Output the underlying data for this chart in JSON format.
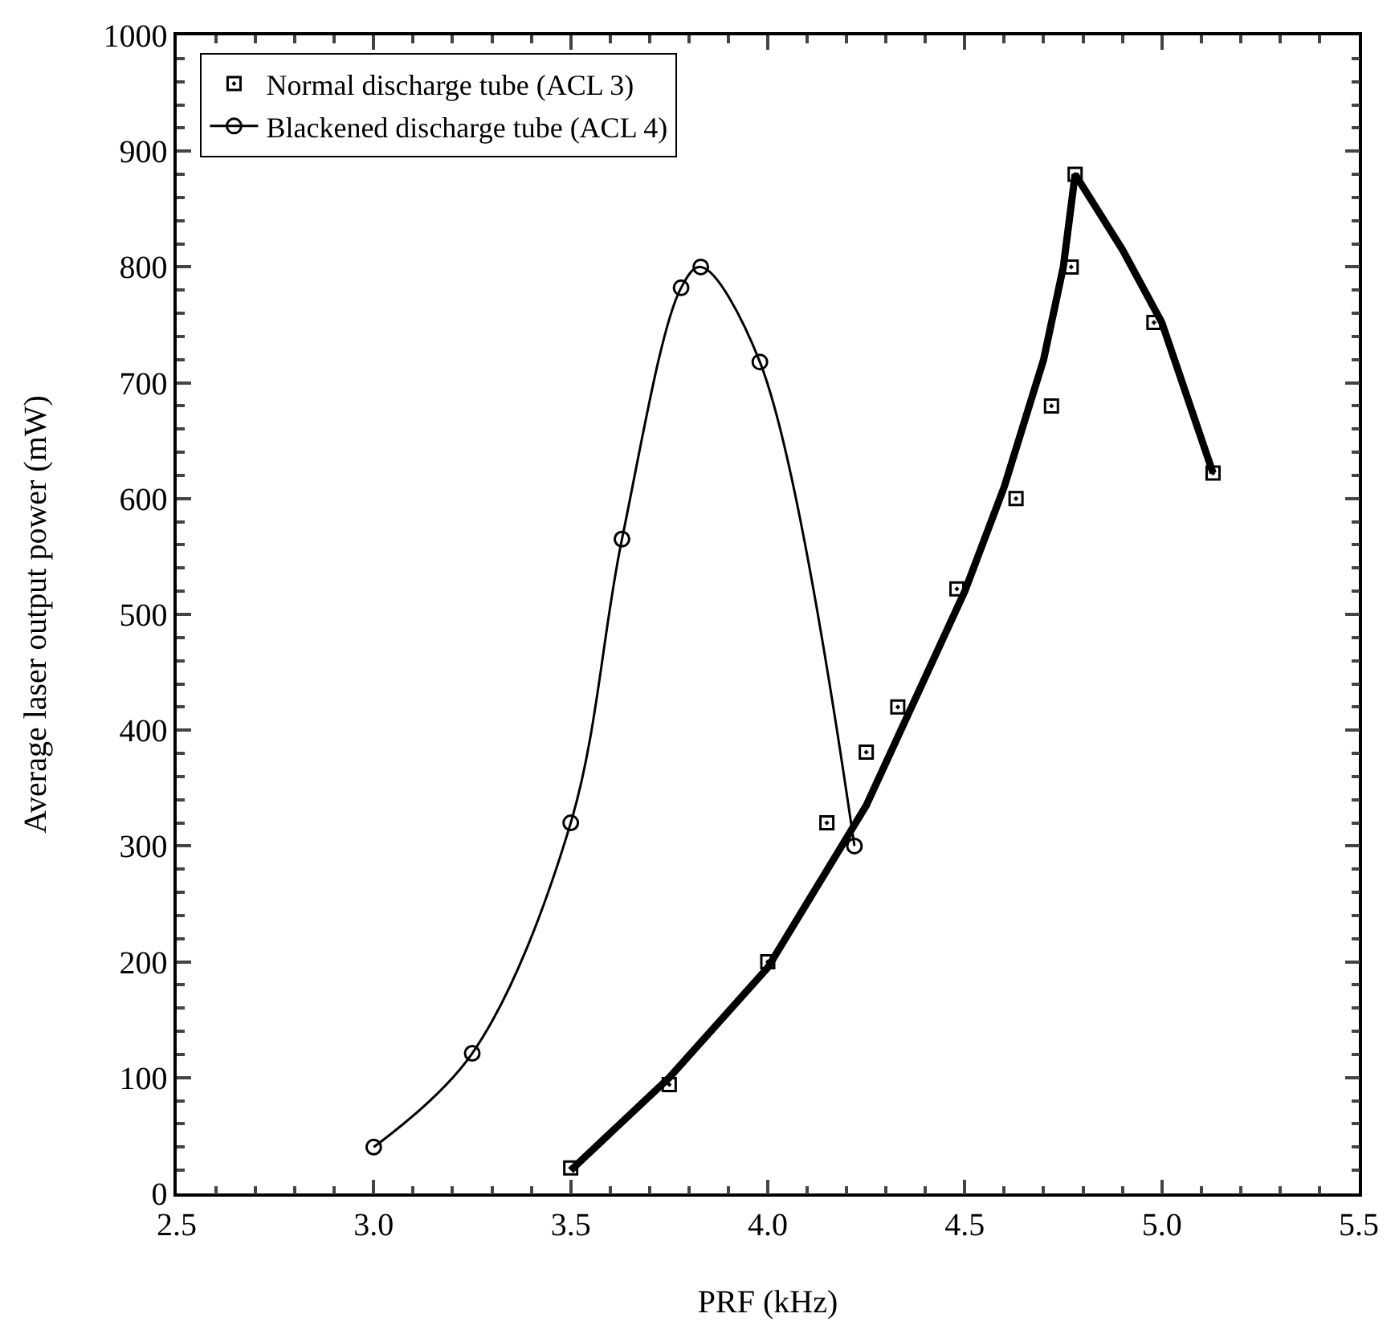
{
  "chart_data": {
    "type": "scatter",
    "xlabel": "PRF (kHz)",
    "ylabel": "Average laser output power (mW)",
    "xlim": [
      2.5,
      5.5
    ],
    "xticks": [
      {
        "value": 2.5,
        "label": "2.5"
      },
      {
        "value": 3,
        "label": "3.0"
      },
      {
        "value": 3.5,
        "label": "3.5"
      },
      {
        "value": 4,
        "label": "4.0"
      },
      {
        "value": 4.5,
        "label": "4.5"
      },
      {
        "value": 5,
        "label": "5.0"
      },
      {
        "value": 5.5,
        "label": "5.5"
      }
    ],
    "ylim": [
      0,
      1000
    ],
    "yticks": [
      0,
      100,
      200,
      300,
      400,
      500,
      600,
      700,
      800,
      900,
      1000
    ],
    "legend": "top left",
    "series": [
      {
        "name": "Normal discharge tube (ACL 3)",
        "marker": "square",
        "color": "#000000",
        "x": [
          3.5,
          3.75,
          4.0,
          4.15,
          4.25,
          4.33,
          4.48,
          4.63,
          4.72,
          4.77,
          4.78,
          4.98,
          5.13
        ],
        "values": [
          22,
          94,
          200,
          320,
          381,
          420,
          522,
          600,
          680,
          800,
          880,
          752,
          622
        ]
      },
      {
        "name": "Blackened discharge tube (ACL 4)",
        "type": "line",
        "marker": "circle",
        "line_style": "solid",
        "color": "#000000",
        "x": [
          3.0,
          3.25,
          3.5,
          3.63,
          3.78,
          3.83,
          3.98,
          4.22
        ],
        "values": [
          40,
          121,
          320,
          565,
          782,
          800,
          718,
          300
        ]
      },
      {
        "type": "line",
        "marker": "none",
        "line_style": "solid",
        "color": "#000000",
        "x": [
          3.5,
          3.75,
          4.0,
          4.25,
          4.5,
          4.6,
          4.7,
          4.75,
          4.78,
          4.9,
          5.0,
          5.13
        ],
        "values": [
          20,
          100,
          195,
          335,
          520,
          610,
          720,
          800,
          880,
          815,
          752,
          622
        ]
      }
    ]
  }
}
